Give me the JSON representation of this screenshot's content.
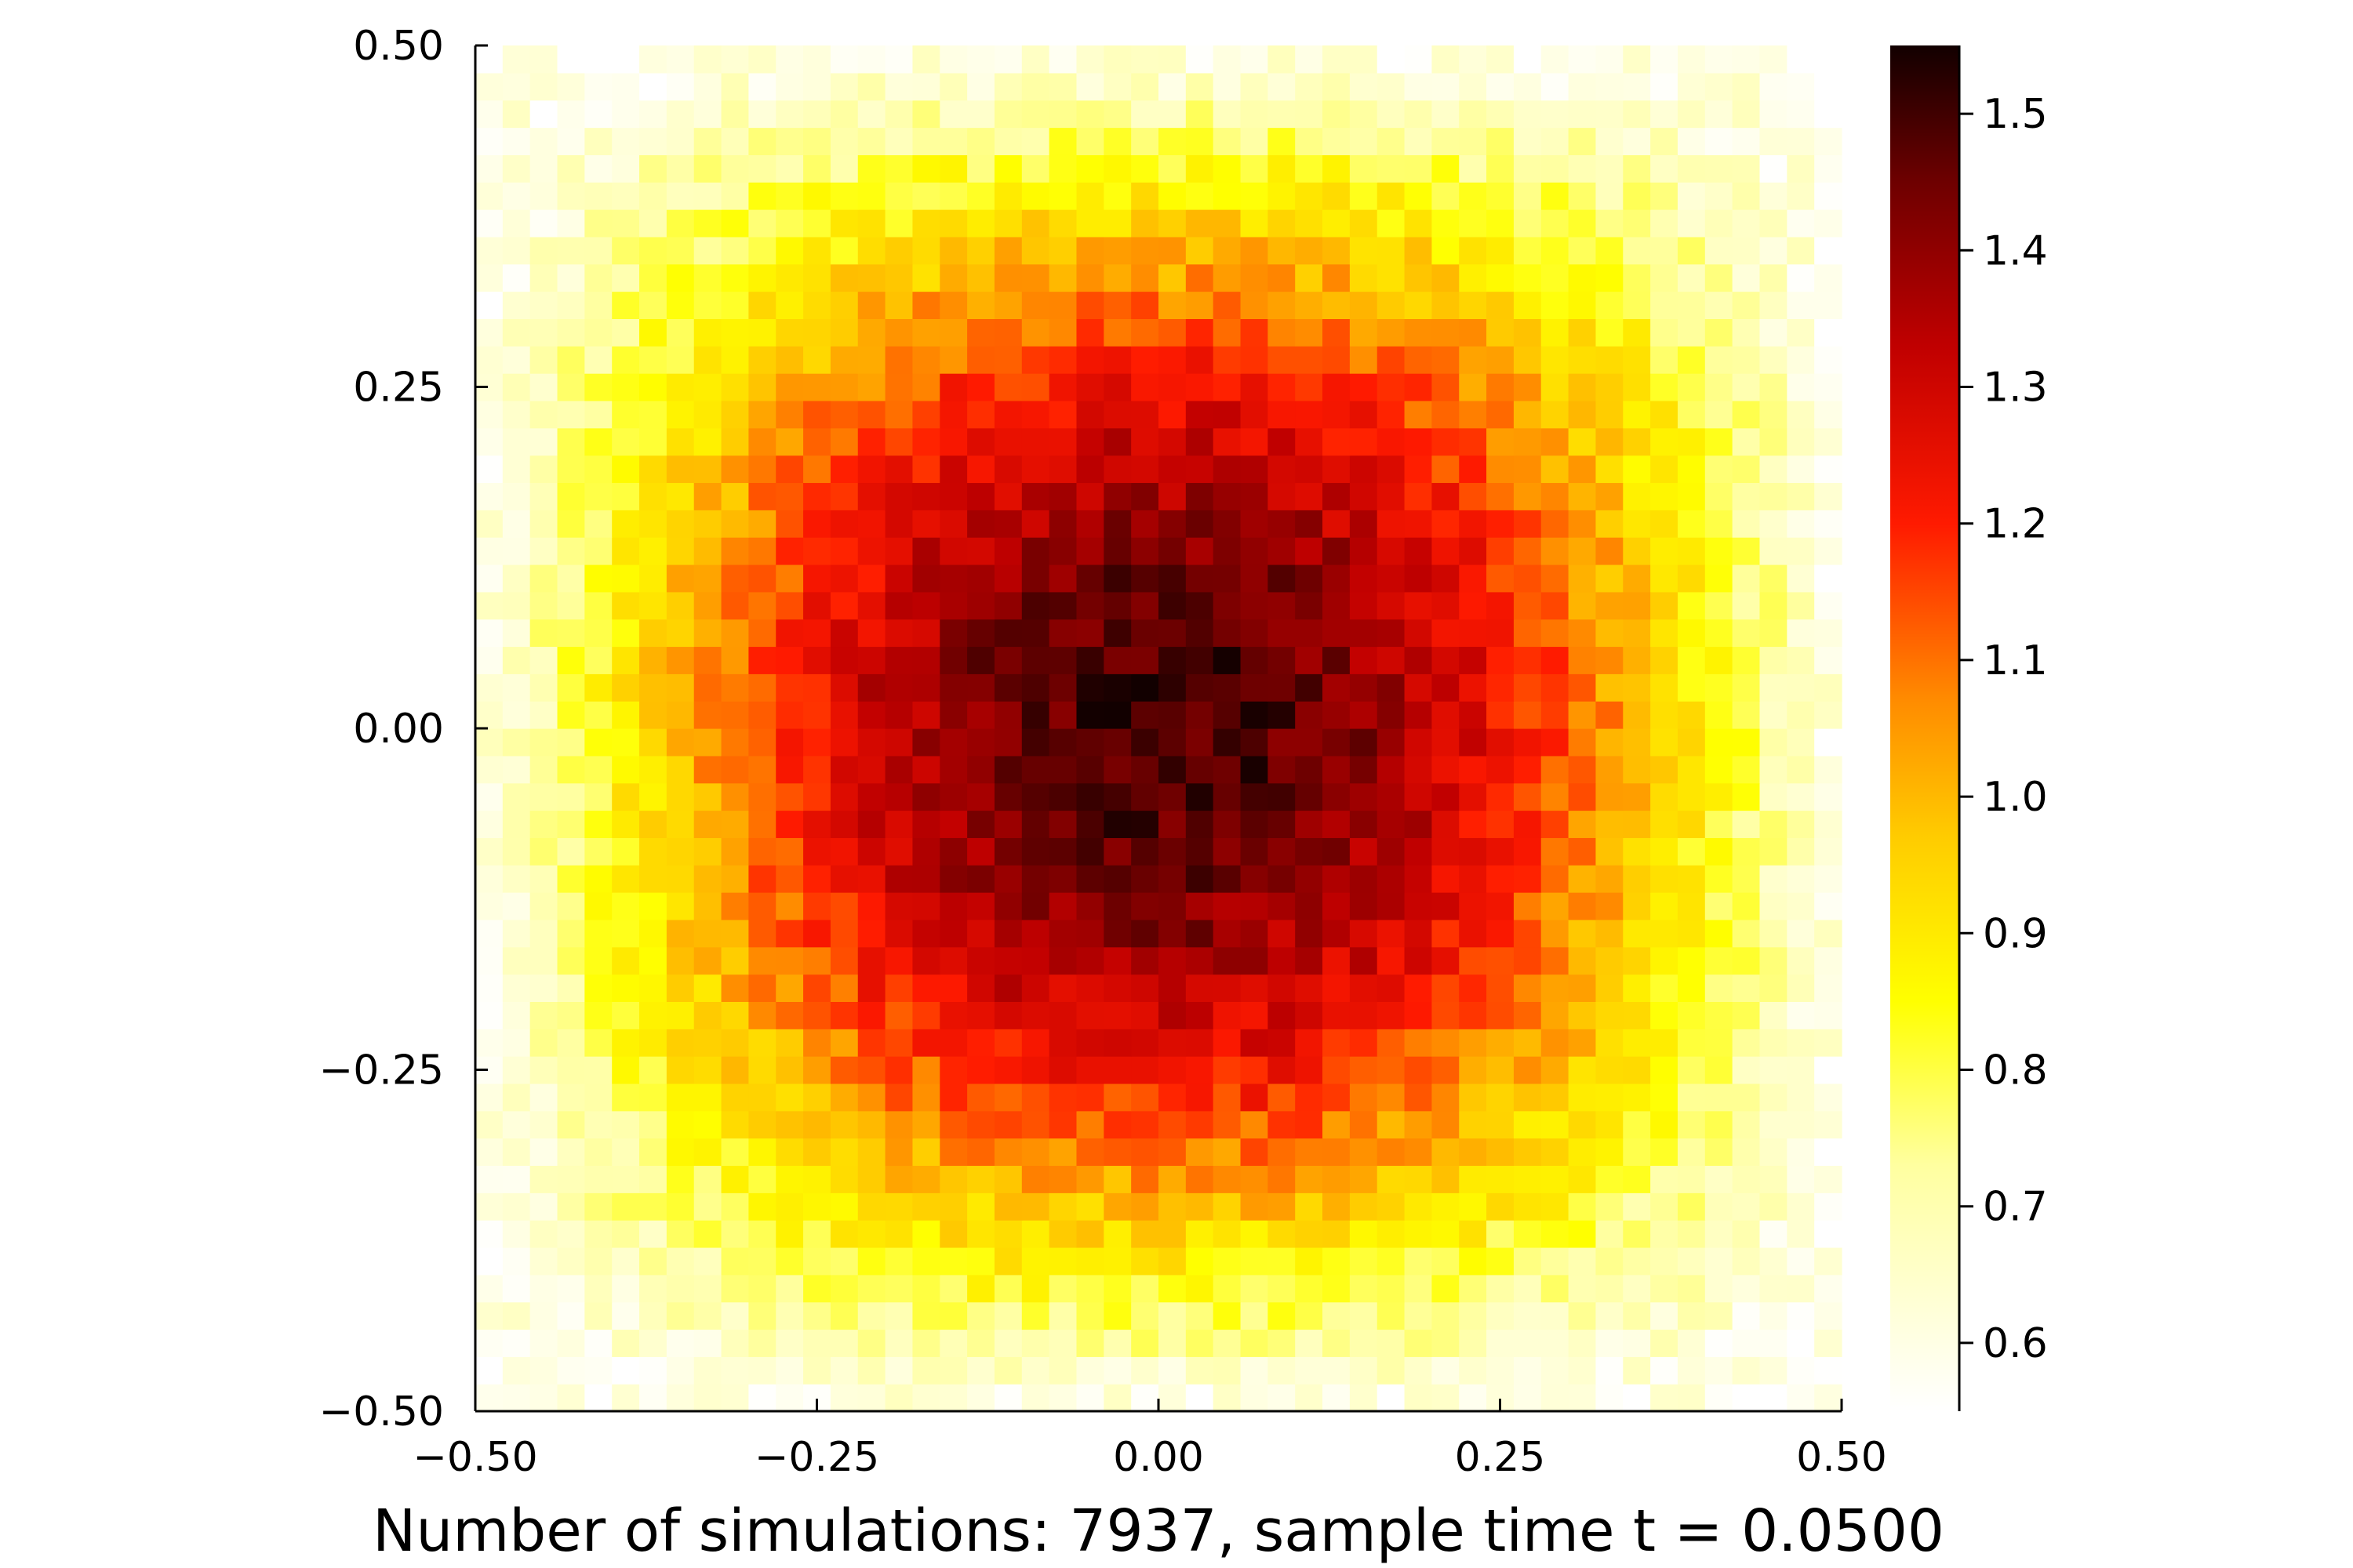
{
  "chart_data": {
    "type": "heatmap",
    "title": "",
    "xlabel": "Number of simulations: 7937, sample time t = 0.0500",
    "ylabel": "",
    "xlim": [
      -0.5,
      0.5
    ],
    "ylim": [
      -0.5,
      0.5
    ],
    "x_ticks": [
      "−0.50",
      "−0.25",
      "0.00",
      "0.25",
      "0.50"
    ],
    "y_ticks": [
      "−0.50",
      "−0.25",
      "0.00",
      "0.25",
      "0.50"
    ],
    "x_tick_values": [
      -0.5,
      -0.25,
      0.0,
      0.25,
      0.5
    ],
    "y_tick_values": [
      -0.5,
      -0.25,
      0.0,
      0.25,
      0.5
    ],
    "grid_size": [
      50,
      50
    ],
    "grid": false,
    "colormap": "heat",
    "colors": [
      "#ffffff",
      "#ffff00",
      "#ffa500",
      "#ff0000",
      "#8b0000",
      "#000000"
    ],
    "colorbar": {
      "range": [
        0.55,
        1.55
      ],
      "ticks": [
        "0.6",
        "0.7",
        "0.8",
        "0.9",
        "1.0",
        "1.1",
        "1.2",
        "1.3",
        "1.4",
        "1.5"
      ],
      "tick_values": [
        0.6,
        0.7,
        0.8,
        0.9,
        1.0,
        1.1,
        1.2,
        1.3,
        1.4,
        1.5
      ]
    },
    "value_model": {
      "description_of_values": "per-cell density (approx): 0.55 + 1.0 * sin(pi*(x+0.5)) * sin(pi*(y+0.5)) with noise; max ~1.55 at center, ~0.55-0.65 at corners",
      "center_value": 1.5,
      "corner_value": 0.58
    }
  }
}
